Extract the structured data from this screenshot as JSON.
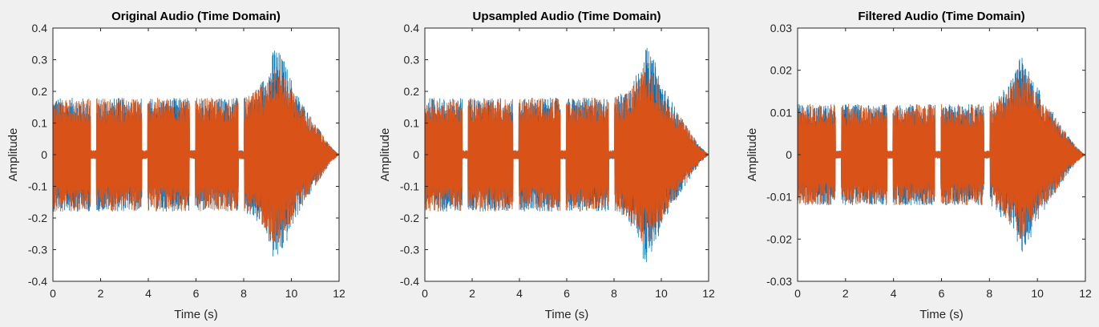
{
  "chart_data": [
    {
      "type": "line",
      "title": "Original Audio (Time Domain)",
      "xlabel": "Time (s)",
      "ylabel": "Amplitude",
      "xlim": [
        0,
        12
      ],
      "ylim": [
        -0.4,
        0.4
      ],
      "xticks": [
        "0",
        "2",
        "4",
        "6",
        "8",
        "10",
        "12"
      ],
      "yticks": [
        "-0.4",
        "-0.3",
        "-0.2",
        "-0.1",
        "0",
        "0.1",
        "0.2",
        "0.3",
        "0.4"
      ],
      "grid": false,
      "series": [
        {
          "color": "#0072bd",
          "peak_envelope": [
            {
              "x": 0.0,
              "y": 0.18
            },
            {
              "x": 2.0,
              "y": 0.18
            },
            {
              "x": 4.0,
              "y": 0.18
            },
            {
              "x": 6.0,
              "y": 0.18
            },
            {
              "x": 7.5,
              "y": 0.18
            },
            {
              "x": 8.0,
              "y": 0.18
            },
            {
              "x": 8.5,
              "y": 0.21
            },
            {
              "x": 9.0,
              "y": 0.26
            },
            {
              "x": 9.3,
              "y": 0.35
            },
            {
              "x": 9.7,
              "y": 0.3
            },
            {
              "x": 10.2,
              "y": 0.2
            },
            {
              "x": 11.0,
              "y": 0.1
            },
            {
              "x": 11.6,
              "y": 0.03
            },
            {
              "x": 12.0,
              "y": 0.0
            }
          ]
        },
        {
          "color": "#d95319",
          "peak_envelope": [
            {
              "x": 0.0,
              "y": 0.18
            },
            {
              "x": 2.0,
              "y": 0.18
            },
            {
              "x": 4.0,
              "y": 0.18
            },
            {
              "x": 6.0,
              "y": 0.18
            },
            {
              "x": 7.5,
              "y": 0.18
            },
            {
              "x": 8.0,
              "y": 0.18
            },
            {
              "x": 8.5,
              "y": 0.2
            },
            {
              "x": 9.0,
              "y": 0.24
            },
            {
              "x": 9.3,
              "y": 0.3
            },
            {
              "x": 9.7,
              "y": 0.26
            },
            {
              "x": 10.2,
              "y": 0.18
            },
            {
              "x": 11.0,
              "y": 0.1
            },
            {
              "x": 11.6,
              "y": 0.03
            },
            {
              "x": 12.0,
              "y": 0.0
            }
          ]
        }
      ]
    },
    {
      "type": "line",
      "title": "Upsampled Audio (Time Domain)",
      "xlabel": "Time (s)",
      "ylabel": "Amplitude",
      "xlim": [
        0,
        12
      ],
      "ylim": [
        -0.4,
        0.4
      ],
      "xticks": [
        "0",
        "2",
        "4",
        "6",
        "8",
        "10",
        "12"
      ],
      "yticks": [
        "-0.4",
        "-0.3",
        "-0.2",
        "-0.1",
        "0",
        "0.1",
        "0.2",
        "0.3",
        "0.4"
      ],
      "grid": false,
      "series": [
        {
          "color": "#0072bd",
          "peak_envelope": [
            {
              "x": 0.0,
              "y": 0.18
            },
            {
              "x": 2.0,
              "y": 0.18
            },
            {
              "x": 4.0,
              "y": 0.18
            },
            {
              "x": 6.0,
              "y": 0.18
            },
            {
              "x": 7.5,
              "y": 0.18
            },
            {
              "x": 8.0,
              "y": 0.18
            },
            {
              "x": 8.5,
              "y": 0.21
            },
            {
              "x": 9.0,
              "y": 0.26
            },
            {
              "x": 9.3,
              "y": 0.35
            },
            {
              "x": 9.7,
              "y": 0.3
            },
            {
              "x": 10.2,
              "y": 0.2
            },
            {
              "x": 11.0,
              "y": 0.1
            },
            {
              "x": 11.6,
              "y": 0.03
            },
            {
              "x": 12.0,
              "y": 0.0
            }
          ]
        },
        {
          "color": "#d95319",
          "peak_envelope": [
            {
              "x": 0.0,
              "y": 0.18
            },
            {
              "x": 2.0,
              "y": 0.18
            },
            {
              "x": 4.0,
              "y": 0.18
            },
            {
              "x": 6.0,
              "y": 0.18
            },
            {
              "x": 7.5,
              "y": 0.18
            },
            {
              "x": 8.0,
              "y": 0.18
            },
            {
              "x": 8.5,
              "y": 0.2
            },
            {
              "x": 9.0,
              "y": 0.24
            },
            {
              "x": 9.3,
              "y": 0.3
            },
            {
              "x": 9.7,
              "y": 0.26
            },
            {
              "x": 10.2,
              "y": 0.18
            },
            {
              "x": 11.0,
              "y": 0.1
            },
            {
              "x": 11.6,
              "y": 0.03
            },
            {
              "x": 12.0,
              "y": 0.0
            }
          ]
        }
      ]
    },
    {
      "type": "line",
      "title": "Filtered Audio (Time Domain)",
      "xlabel": "Time (s)",
      "ylabel": "Amplitude",
      "xlim": [
        0,
        12
      ],
      "ylim": [
        -0.03,
        0.03
      ],
      "xticks": [
        "0",
        "2",
        "4",
        "6",
        "8",
        "10",
        "12"
      ],
      "yticks": [
        "-0.03",
        "-0.02",
        "-0.01",
        "0",
        "0.01",
        "0.02",
        "0.03"
      ],
      "grid": false,
      "series": [
        {
          "color": "#0072bd",
          "peak_envelope": [
            {
              "x": 0.0,
              "y": 0.012
            },
            {
              "x": 2.0,
              "y": 0.012
            },
            {
              "x": 4.0,
              "y": 0.012
            },
            {
              "x": 6.0,
              "y": 0.012
            },
            {
              "x": 7.5,
              "y": 0.012
            },
            {
              "x": 8.0,
              "y": 0.012
            },
            {
              "x": 8.5,
              "y": 0.015
            },
            {
              "x": 9.0,
              "y": 0.019
            },
            {
              "x": 9.3,
              "y": 0.024
            },
            {
              "x": 9.7,
              "y": 0.02
            },
            {
              "x": 10.2,
              "y": 0.014
            },
            {
              "x": 11.0,
              "y": 0.007
            },
            {
              "x": 11.6,
              "y": 0.002
            },
            {
              "x": 12.0,
              "y": 0.0
            }
          ]
        },
        {
          "color": "#d95319",
          "peak_envelope": [
            {
              "x": 0.0,
              "y": 0.012
            },
            {
              "x": 2.0,
              "y": 0.012
            },
            {
              "x": 4.0,
              "y": 0.012
            },
            {
              "x": 6.0,
              "y": 0.012
            },
            {
              "x": 7.5,
              "y": 0.012
            },
            {
              "x": 8.0,
              "y": 0.012
            },
            {
              "x": 8.5,
              "y": 0.014
            },
            {
              "x": 9.0,
              "y": 0.017
            },
            {
              "x": 9.3,
              "y": 0.021
            },
            {
              "x": 9.7,
              "y": 0.018
            },
            {
              "x": 10.2,
              "y": 0.013
            },
            {
              "x": 11.0,
              "y": 0.007
            },
            {
              "x": 11.6,
              "y": 0.002
            },
            {
              "x": 12.0,
              "y": 0.0
            }
          ]
        }
      ]
    }
  ]
}
